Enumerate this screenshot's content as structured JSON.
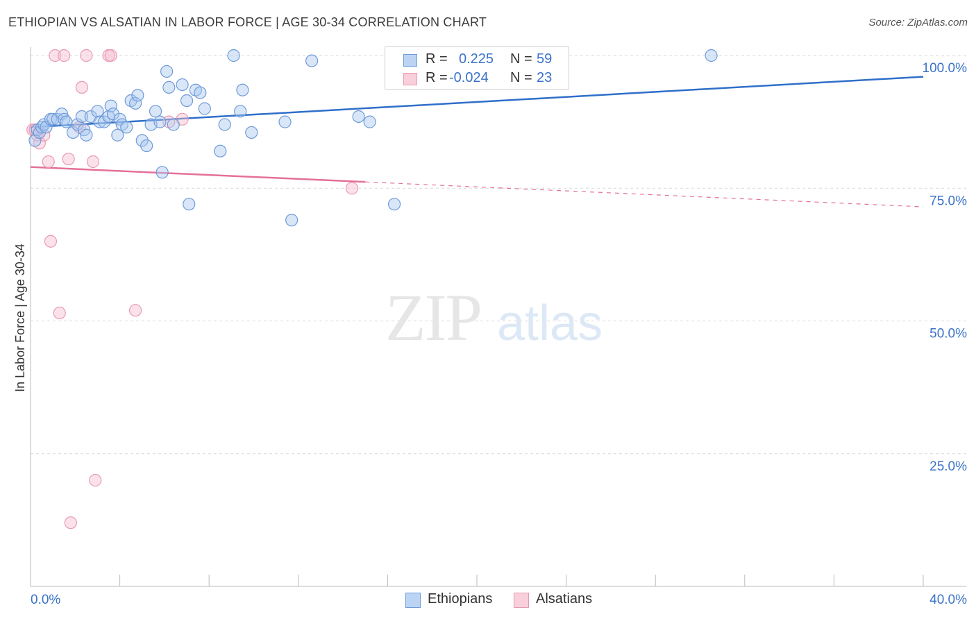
{
  "title": "ETHIOPIAN VS ALSATIAN IN LABOR FORCE | AGE 30-34 CORRELATION CHART",
  "source": "Source: ZipAtlas.com",
  "watermark": {
    "zip": "ZIP",
    "atlas": "atlas"
  },
  "stats": {
    "ethiopians": {
      "r_label": "R =",
      "r_value": "0.225",
      "n_label": "N =",
      "n_value": "59"
    },
    "alsatians": {
      "r_label": "R =",
      "r_value": "-0.024",
      "n_label": "N =",
      "n_value": "23"
    }
  },
  "legend": {
    "ethiopians": "Ethiopians",
    "alsatians": "Alsatians"
  },
  "colors": {
    "blue_fill": "#a9c8f0",
    "blue_stroke": "#6f9bd8",
    "blue_line": "#2f6fc9",
    "pink_fill": "#f6bfd0",
    "pink_stroke": "#e89ab3",
    "pink_line": "#e4709a",
    "axis_label": "#3a72c8",
    "grid": "#d9d9d9"
  },
  "chart_data": {
    "type": "scatter",
    "title": "ETHIOPIAN VS ALSATIAN IN LABOR FORCE | AGE 30-34 CORRELATION CHART",
    "xlabel": "",
    "ylabel": "In Labor Force | Age 30-34",
    "xlim": [
      0,
      40
    ],
    "ylim": [
      0,
      100
    ],
    "x_tick_labels": [
      "0.0%",
      "40.0%"
    ],
    "y_ticks": [
      25,
      50,
      75,
      100
    ],
    "y_tick_labels": [
      "25.0%",
      "50.0%",
      "75.0%",
      "100.0%"
    ],
    "grid": true,
    "series": [
      {
        "name": "Ethiopians",
        "points": [
          [
            0.2,
            84.0
          ],
          [
            0.3,
            86.0
          ],
          [
            0.4,
            85.5
          ],
          [
            0.5,
            86.5
          ],
          [
            0.6,
            87.0
          ],
          [
            0.7,
            86.5
          ],
          [
            0.9,
            88.0
          ],
          [
            1.0,
            88.0
          ],
          [
            1.2,
            88.0
          ],
          [
            1.4,
            89.0
          ],
          [
            1.5,
            88.0
          ],
          [
            1.6,
            87.5
          ],
          [
            1.9,
            85.5
          ],
          [
            2.1,
            87.0
          ],
          [
            2.3,
            88.5
          ],
          [
            2.4,
            86.0
          ],
          [
            2.5,
            85.0
          ],
          [
            2.7,
            88.5
          ],
          [
            3.0,
            89.5
          ],
          [
            3.1,
            87.5
          ],
          [
            3.3,
            87.5
          ],
          [
            3.5,
            88.5
          ],
          [
            3.6,
            90.5
          ],
          [
            3.7,
            89.0
          ],
          [
            3.9,
            85.0
          ],
          [
            4.0,
            88.0
          ],
          [
            4.1,
            87.0
          ],
          [
            4.3,
            86.5
          ],
          [
            4.5,
            91.5
          ],
          [
            4.7,
            91.0
          ],
          [
            4.8,
            92.5
          ],
          [
            5.0,
            84.0
          ],
          [
            5.2,
            83.0
          ],
          [
            5.4,
            87.0
          ],
          [
            5.6,
            89.5
          ],
          [
            5.8,
            87.5
          ],
          [
            5.9,
            78.0
          ],
          [
            6.1,
            97.0
          ],
          [
            6.2,
            94.0
          ],
          [
            6.4,
            87.0
          ],
          [
            6.8,
            94.5
          ],
          [
            7.0,
            91.5
          ],
          [
            7.1,
            72.0
          ],
          [
            7.4,
            93.5
          ],
          [
            7.6,
            93.0
          ],
          [
            7.8,
            90.0
          ],
          [
            8.5,
            82.0
          ],
          [
            8.7,
            87.0
          ],
          [
            9.1,
            100.0
          ],
          [
            9.4,
            89.5
          ],
          [
            9.5,
            93.5
          ],
          [
            9.9,
            85.5
          ],
          [
            11.4,
            87.5
          ],
          [
            11.7,
            69.0
          ],
          [
            12.6,
            99.0
          ],
          [
            14.7,
            88.5
          ],
          [
            15.2,
            87.5
          ],
          [
            16.3,
            72.0
          ],
          [
            30.5,
            100.0
          ]
        ],
        "trend": {
          "x": [
            0,
            40
          ],
          "y": [
            86.5,
            96.0
          ]
        }
      },
      {
        "name": "Alsatians",
        "points": [
          [
            0.1,
            86.0
          ],
          [
            0.3,
            85.0
          ],
          [
            0.4,
            83.5
          ],
          [
            0.6,
            85.0
          ],
          [
            0.8,
            80.0
          ],
          [
            0.9,
            65.0
          ],
          [
            1.1,
            100.0
          ],
          [
            1.3,
            51.5
          ],
          [
            1.5,
            100.0
          ],
          [
            1.7,
            80.5
          ],
          [
            1.8,
            12.0
          ],
          [
            2.2,
            86.5
          ],
          [
            2.3,
            94.0
          ],
          [
            2.5,
            100.0
          ],
          [
            2.8,
            80.0
          ],
          [
            2.9,
            20.0
          ],
          [
            3.5,
            100.0
          ],
          [
            3.6,
            100.0
          ],
          [
            4.7,
            52.0
          ],
          [
            6.2,
            87.5
          ],
          [
            6.8,
            88.0
          ],
          [
            14.4,
            75.0
          ],
          [
            0.2,
            86.0
          ]
        ],
        "trend": {
          "x": [
            0,
            40
          ],
          "y": [
            79.0,
            71.5
          ],
          "solid_until_x": 15
        }
      }
    ]
  }
}
